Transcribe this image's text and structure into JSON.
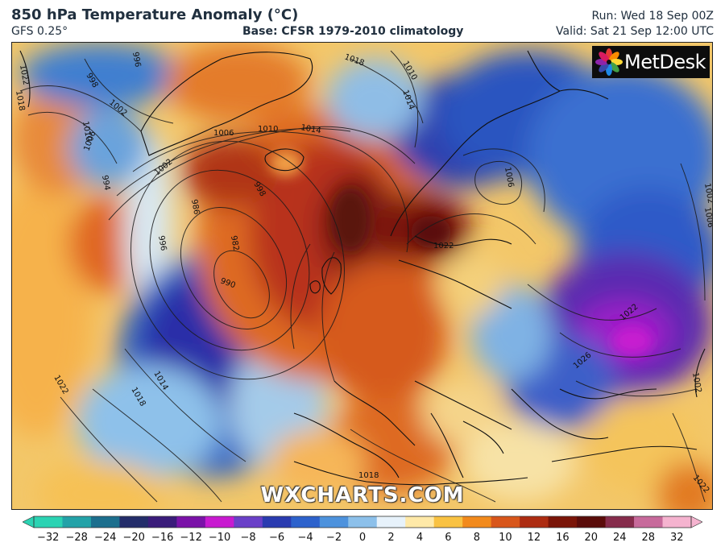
{
  "header": {
    "title": "850 hPa Temperature Anomaly (°C)",
    "model": "GFS 0.25°",
    "base": "Base: CFSR 1979-2010 climatology",
    "run": "Run: Wed 18 Sep 00Z",
    "valid": "Valid: Sat 21 Sep 12:00 UTC"
  },
  "logo": {
    "text": "MetDesk",
    "icon": "metdesk-flower-logo"
  },
  "watermark": "WXCHARTS.COM",
  "isobars": {
    "labels": [
      "1022",
      "1018",
      "998",
      "996",
      "1002",
      "1010",
      "1006",
      "1002",
      "1006",
      "1010",
      "1014",
      "1018",
      "1010",
      "1014",
      "986",
      "982",
      "990",
      "996",
      "994",
      "998",
      "1014",
      "1018",
      "1022",
      "1006",
      "1022",
      "1026",
      "1022",
      "1002",
      "1006",
      "1002",
      "1022",
      "1018"
    ]
  },
  "colorbar": {
    "ticks": [
      "−32",
      "−28",
      "−24",
      "−20",
      "−16",
      "−12",
      "−10",
      "−8",
      "−6",
      "−4",
      "−2",
      "0",
      "2",
      "4",
      "6",
      "8",
      "10",
      "12",
      "16",
      "20",
      "24",
      "28",
      "32"
    ],
    "colors": [
      "#2bd3b3",
      "#23a2a8",
      "#1c6f8e",
      "#232d6a",
      "#3a1c7a",
      "#7a12a8",
      "#c81ad0",
      "#6a40c8",
      "#2a3bb0",
      "#2d62cc",
      "#4d92dd",
      "#8cc0ea",
      "#e7f2fb",
      "#ffe9a8",
      "#f9c242",
      "#f28a1c",
      "#d8561b",
      "#ad2c12",
      "#7a1508",
      "#5a0c0a",
      "#862c4c",
      "#c76a9b",
      "#f5b3cf"
    ]
  }
}
